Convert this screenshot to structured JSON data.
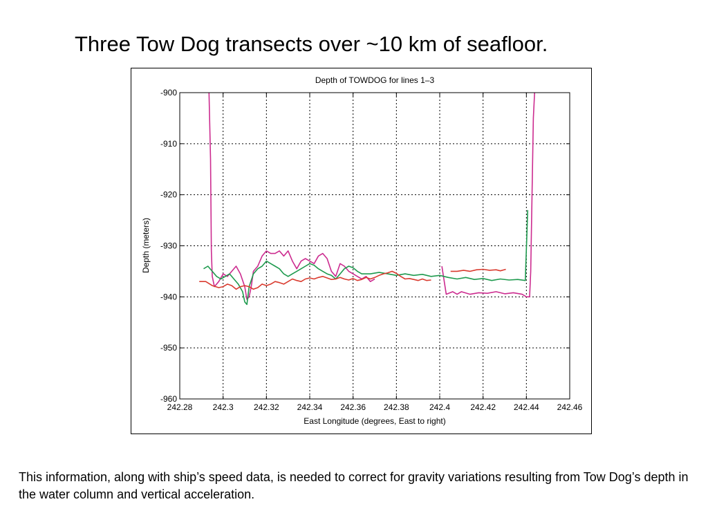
{
  "slide": {
    "title": "Three Tow Dog transects over ~10 km of seafloor.",
    "caption": "This information, along with ship’s speed data, is needed to correct for gravity variations resulting from Tow Dog’s depth in the water column and vertical acceleration."
  },
  "chart_data": {
    "type": "line",
    "title": "Depth of TOWDOG for lines 1–3",
    "xlabel": "East Longitude (degrees, East to right)",
    "ylabel": "Depth (meters)",
    "xlim": [
      242.28,
      242.46
    ],
    "ylim": [
      -960,
      -900
    ],
    "xticks": [
      242.28,
      242.3,
      242.32,
      242.34,
      242.36,
      242.38,
      242.4,
      242.42,
      242.44,
      242.46
    ],
    "yticks": [
      -900,
      -910,
      -920,
      -930,
      -940,
      -950,
      -960
    ],
    "xtick_labels": [
      "242.28",
      "242.3",
      "242.32",
      "242.34",
      "242.36",
      "242.38",
      "242.4",
      "242.42",
      "242.44",
      "242.46"
    ],
    "ytick_labels": [
      "-900",
      "-910",
      "-920",
      "-930",
      "-940",
      "-950",
      "-960"
    ],
    "grid": true,
    "series": [
      {
        "color": "#cc2b8f",
        "segments": [
          [
            [
              242.2935,
              -900
            ],
            [
              242.2942,
              -913
            ],
            [
              242.2946,
              -931
            ],
            [
              242.295,
              -936
            ],
            [
              242.296,
              -938
            ],
            [
              242.298,
              -937
            ],
            [
              242.3,
              -935.5
            ],
            [
              242.302,
              -936
            ],
            [
              242.304,
              -935
            ],
            [
              242.306,
              -934
            ],
            [
              242.308,
              -935.5
            ],
            [
              242.31,
              -938
            ],
            [
              242.311,
              -940.5
            ],
            [
              242.312,
              -940
            ],
            [
              242.313,
              -938
            ],
            [
              242.314,
              -935
            ],
            [
              242.316,
              -934
            ],
            [
              242.318,
              -932
            ],
            [
              242.32,
              -931
            ],
            [
              242.322,
              -931.5
            ],
            [
              242.324,
              -931.5
            ],
            [
              242.326,
              -931
            ],
            [
              242.328,
              -932
            ],
            [
              242.33,
              -931
            ],
            [
              242.332,
              -933
            ],
            [
              242.334,
              -934.5
            ],
            [
              242.336,
              -933
            ],
            [
              242.338,
              -932.5
            ],
            [
              242.34,
              -933
            ],
            [
              242.342,
              -933.5
            ],
            [
              242.344,
              -932
            ],
            [
              242.346,
              -931.5
            ],
            [
              242.348,
              -932.5
            ],
            [
              242.35,
              -935
            ],
            [
              242.352,
              -936
            ],
            [
              242.354,
              -933.5
            ],
            [
              242.356,
              -934
            ],
            [
              242.358,
              -935
            ],
            [
              242.36,
              -935.5
            ],
            [
              242.362,
              -936
            ],
            [
              242.364,
              -936.5
            ],
            [
              242.366,
              -936
            ],
            [
              242.368,
              -937
            ],
            [
              242.37,
              -936.5
            ]
          ],
          [
            [
              242.401,
              -934
            ],
            [
              242.403,
              -939.5
            ],
            [
              242.406,
              -939
            ],
            [
              242.408,
              -939.5
            ],
            [
              242.41,
              -939
            ],
            [
              242.414,
              -939.5
            ],
            [
              242.418,
              -939.2
            ],
            [
              242.422,
              -939.3
            ],
            [
              242.426,
              -939
            ],
            [
              242.43,
              -939.4
            ],
            [
              242.434,
              -939.2
            ],
            [
              242.438,
              -939.5
            ],
            [
              242.44,
              -940
            ],
            [
              242.4415,
              -940
            ],
            [
              242.442,
              -935
            ],
            [
              242.4426,
              -920
            ],
            [
              242.4432,
              -905
            ],
            [
              242.4438,
              -900
            ]
          ]
        ]
      },
      {
        "color": "#1e9a4e",
        "segments": [
          [
            [
              242.291,
              -934.5
            ],
            [
              242.293,
              -934
            ],
            [
              242.295,
              -935
            ],
            [
              242.297,
              -936
            ],
            [
              242.299,
              -936.5
            ],
            [
              242.301,
              -936
            ],
            [
              242.303,
              -935.5
            ],
            [
              242.305,
              -936.5
            ],
            [
              242.307,
              -937.5
            ],
            [
              242.309,
              -939
            ],
            [
              242.31,
              -941
            ],
            [
              242.311,
              -941.5
            ],
            [
              242.312,
              -938
            ],
            [
              242.314,
              -935.5
            ],
            [
              242.316,
              -934.5
            ],
            [
              242.318,
              -934
            ],
            [
              242.32,
              -933
            ],
            [
              242.322,
              -933.5
            ],
            [
              242.324,
              -934
            ],
            [
              242.326,
              -934.5
            ],
            [
              242.328,
              -935.5
            ],
            [
              242.33,
              -936
            ],
            [
              242.332,
              -935.5
            ],
            [
              242.334,
              -935
            ],
            [
              242.336,
              -934.5
            ],
            [
              242.338,
              -934
            ],
            [
              242.34,
              -933.5
            ],
            [
              242.342,
              -933.8
            ],
            [
              242.344,
              -934.5
            ],
            [
              242.346,
              -935
            ],
            [
              242.348,
              -935.5
            ],
            [
              242.35,
              -935.8
            ],
            [
              242.352,
              -936.5
            ],
            [
              242.354,
              -935.5
            ],
            [
              242.356,
              -934.5
            ],
            [
              242.358,
              -934
            ],
            [
              242.36,
              -934.3
            ],
            [
              242.362,
              -935
            ],
            [
              242.364,
              -935.5
            ],
            [
              242.368,
              -935.5
            ],
            [
              242.372,
              -935.2
            ],
            [
              242.376,
              -935.5
            ],
            [
              242.38,
              -935.8
            ],
            [
              242.384,
              -935.5
            ],
            [
              242.388,
              -935.8
            ],
            [
              242.392,
              -935.6
            ],
            [
              242.396,
              -936
            ],
            [
              242.4,
              -935.8
            ],
            [
              242.404,
              -936.2
            ],
            [
              242.408,
              -936.5
            ],
            [
              242.412,
              -936.2
            ],
            [
              242.416,
              -936.6
            ],
            [
              242.42,
              -936.4
            ],
            [
              242.424,
              -936.8
            ],
            [
              242.428,
              -936.5
            ],
            [
              242.432,
              -936.7
            ],
            [
              242.436,
              -936.6
            ],
            [
              242.4395,
              -936.8
            ],
            [
              242.4398,
              -933
            ],
            [
              242.4402,
              -928
            ],
            [
              242.4406,
              -923
            ]
          ]
        ]
      },
      {
        "color": "#d93a2e",
        "segments": [
          [
            [
              242.289,
              -937
            ],
            [
              242.292,
              -937
            ],
            [
              242.295,
              -937.8
            ],
            [
              242.298,
              -938.2
            ],
            [
              242.3,
              -938
            ],
            [
              242.302,
              -937.5
            ],
            [
              242.304,
              -937.8
            ],
            [
              242.306,
              -938.5
            ],
            [
              242.308,
              -938
            ],
            [
              242.31,
              -937.8
            ],
            [
              242.312,
              -938
            ],
            [
              242.314,
              -938.5
            ],
            [
              242.316,
              -938.2
            ],
            [
              242.318,
              -937.5
            ],
            [
              242.32,
              -937.8
            ],
            [
              242.322,
              -937.5
            ],
            [
              242.324,
              -937
            ],
            [
              242.326,
              -937.2
            ],
            [
              242.328,
              -937.5
            ],
            [
              242.33,
              -937
            ],
            [
              242.332,
              -936.5
            ],
            [
              242.334,
              -936.8
            ],
            [
              242.336,
              -937
            ],
            [
              242.338,
              -936.5
            ],
            [
              242.34,
              -936.3
            ],
            [
              242.342,
              -936.5
            ],
            [
              242.344,
              -936.2
            ],
            [
              242.346,
              -936
            ],
            [
              242.348,
              -936.3
            ],
            [
              242.35,
              -936.6
            ],
            [
              242.352,
              -936.5
            ],
            [
              242.354,
              -936.2
            ],
            [
              242.356,
              -936.5
            ],
            [
              242.358,
              -936.7
            ],
            [
              242.36,
              -936.4
            ],
            [
              242.362,
              -936.8
            ],
            [
              242.364,
              -936.6
            ],
            [
              242.366,
              -936.2
            ],
            [
              242.368,
              -936.5
            ],
            [
              242.37,
              -936.2
            ],
            [
              242.372,
              -935.8
            ],
            [
              242.374,
              -935.5
            ],
            [
              242.376,
              -935.3
            ],
            [
              242.378,
              -935
            ],
            [
              242.38,
              -935.4
            ],
            [
              242.382,
              -936
            ],
            [
              242.384,
              -936.5
            ],
            [
              242.386,
              -936.4
            ],
            [
              242.388,
              -936.6
            ],
            [
              242.39,
              -936.8
            ],
            [
              242.392,
              -936.5
            ],
            [
              242.394,
              -936.8
            ],
            [
              242.396,
              -936.7
            ]
          ],
          [
            [
              242.405,
              -935
            ],
            [
              242.408,
              -935
            ],
            [
              242.411,
              -934.8
            ],
            [
              242.414,
              -935
            ],
            [
              242.417,
              -934.7
            ],
            [
              242.42,
              -934.6
            ],
            [
              242.423,
              -934.8
            ],
            [
              242.426,
              -934.7
            ],
            [
              242.428,
              -934.9
            ],
            [
              242.4305,
              -934.6
            ]
          ]
        ]
      }
    ]
  }
}
